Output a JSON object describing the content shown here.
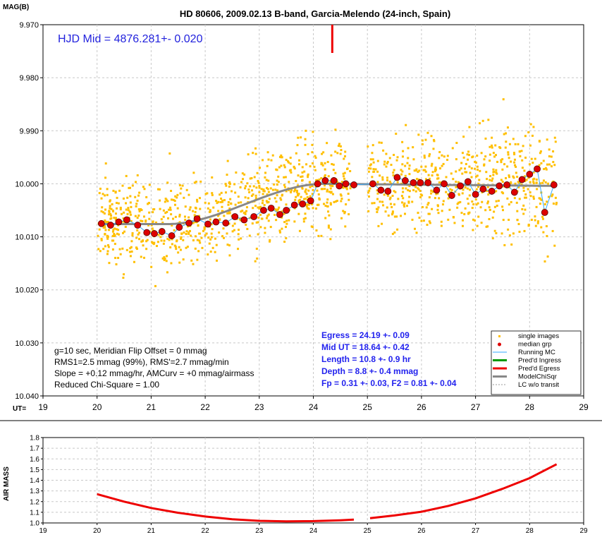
{
  "chart_data": [
    {
      "type": "scatter",
      "title": "HD 80606, 2009.02.13 B-band, Garcia-Melendo (24-inch, Spain)",
      "ylabel": "MAG(B)",
      "xlabel": "UT=",
      "xlim": [
        19,
        29
      ],
      "ylim": [
        9.97,
        10.04
      ],
      "y_inverted": true,
      "x_ticks": [
        "19",
        "20",
        "21",
        "22",
        "23",
        "24",
        "25",
        "26",
        "27",
        "28",
        "29"
      ],
      "y_ticks": [
        "9.970",
        "9.980",
        "9.990",
        "10.000",
        "10.010",
        "10.020",
        "10.030",
        "10.040"
      ],
      "grid": true,
      "legend_placement": "bottom-right",
      "legend": [
        {
          "label": "single images",
          "color": "#ffbf00",
          "marker": "dot"
        },
        {
          "label": "median grp",
          "color": "#dd0000",
          "marker": "dot"
        },
        {
          "label": "Running MC",
          "color": "#33aaff",
          "marker": "line"
        },
        {
          "label": "Pred'd Ingress",
          "color": "#009900",
          "marker": "thick-line"
        },
        {
          "label": "Pred'd Egress",
          "color": "#ee0000",
          "marker": "thick-line"
        },
        {
          "label": "ModelChiSqr",
          "color": "#888888",
          "marker": "thick-line"
        },
        {
          "label": "LC w/o transit",
          "color": "#999999",
          "marker": "dashed"
        }
      ],
      "annotations": {
        "hjd": "HJD Mid = 4876.281+- 0.020",
        "info": [
          "g=10 sec, Meridian Flip Offset = 0 mmag",
          "RMS1=2.5 mmag (99%), RMS'=2.7 mmag/min",
          "Slope = +0.12 mmag/hr, AMCurv = +0 mmag/airmass",
          "Reduced Chi-Square = 1.00"
        ],
        "results": [
          "Egress = 24.19 +- 0.09",
          "Mid UT = 18.64 +- 0.42",
          "Length = 10.8 +- 0.9 hr",
          "Depth = 8.8 +- 0.4 mmag",
          "Fp = 0.31 +- 0.03, F2 = 0.81 +- 0.04"
        ]
      },
      "egress_marker_ut": 24.35,
      "gap": [
        24.7,
        25.0
      ],
      "model": {
        "pre_level": 10.0076,
        "flat_start": 20.1,
        "ramp_start": 21.3,
        "ramp_end": 24.2,
        "post_level": 10.0,
        "post_end_level": 10.0004,
        "end": 28.5
      },
      "median_grp": [
        [
          20.08,
          10.0075
        ],
        [
          20.25,
          10.0078
        ],
        [
          20.4,
          10.0072
        ],
        [
          20.55,
          10.0068
        ],
        [
          20.75,
          10.0078
        ],
        [
          20.92,
          10.0092
        ],
        [
          21.06,
          10.0094
        ],
        [
          21.2,
          10.009
        ],
        [
          21.38,
          10.0098
        ],
        [
          21.52,
          10.0082
        ],
        [
          21.7,
          10.0074
        ],
        [
          21.85,
          10.0066
        ],
        [
          22.05,
          10.0076
        ],
        [
          22.2,
          10.0072
        ],
        [
          22.38,
          10.0074
        ],
        [
          22.55,
          10.0062
        ],
        [
          22.72,
          10.0068
        ],
        [
          22.9,
          10.0062
        ],
        [
          23.08,
          10.005
        ],
        [
          23.22,
          10.0046
        ],
        [
          23.38,
          10.0058
        ],
        [
          23.5,
          10.005
        ],
        [
          23.65,
          10.004
        ],
        [
          23.8,
          10.0038
        ],
        [
          23.95,
          10.0032
        ],
        [
          24.08,
          10.0
        ],
        [
          24.22,
          9.9994
        ],
        [
          24.38,
          9.9994
        ],
        [
          24.48,
          10.0004
        ],
        [
          24.6,
          10.0
        ],
        [
          24.75,
          10.0002
        ],
        [
          25.1,
          10.0
        ],
        [
          25.25,
          10.0012
        ],
        [
          25.38,
          10.0014
        ],
        [
          25.55,
          9.9988
        ],
        [
          25.7,
          9.9994
        ],
        [
          25.85,
          9.9998
        ],
        [
          25.98,
          9.9998
        ],
        [
          26.12,
          9.9998
        ],
        [
          26.28,
          10.0012
        ],
        [
          26.42,
          10.0
        ],
        [
          26.56,
          10.0022
        ],
        [
          26.72,
          10.0004
        ],
        [
          26.86,
          9.9996
        ],
        [
          27.0,
          10.002
        ],
        [
          27.14,
          10.001
        ],
        [
          27.3,
          10.0014
        ],
        [
          27.44,
          10.0004
        ],
        [
          27.58,
          10.0002
        ],
        [
          27.72,
          10.0016
        ],
        [
          27.86,
          9.9992
        ],
        [
          28.0,
          9.9982
        ],
        [
          28.14,
          9.9972
        ],
        [
          28.28,
          10.0054
        ],
        [
          28.45,
          10.0002
        ]
      ]
    },
    {
      "type": "line",
      "ylabel": "AIR MASS",
      "xlim": [
        19,
        29
      ],
      "ylim": [
        1.0,
        1.8
      ],
      "x_ticks": [
        "19",
        "20",
        "21",
        "22",
        "23",
        "24",
        "25",
        "26",
        "27",
        "28",
        "29"
      ],
      "y_ticks": [
        "1.0",
        "1.1",
        "1.2",
        "1.3",
        "1.4",
        "1.5",
        "1.6",
        "1.7",
        "1.8"
      ],
      "grid": true,
      "series": [
        {
          "values_x": [
            20.0,
            20.5,
            21.0,
            21.5,
            22.0,
            22.5,
            23.0,
            23.5,
            24.0,
            24.5,
            24.75
          ],
          "values_y": [
            1.27,
            1.2,
            1.14,
            1.095,
            1.06,
            1.035,
            1.02,
            1.015,
            1.017,
            1.025,
            1.032
          ],
          "color": "#ee0000"
        },
        {
          "values_x": [
            25.05,
            25.5,
            26.0,
            26.5,
            27.0,
            27.5,
            28.0,
            28.5
          ],
          "values_y": [
            1.045,
            1.07,
            1.105,
            1.16,
            1.23,
            1.32,
            1.42,
            1.55
          ],
          "color": "#ee0000"
        }
      ]
    }
  ]
}
